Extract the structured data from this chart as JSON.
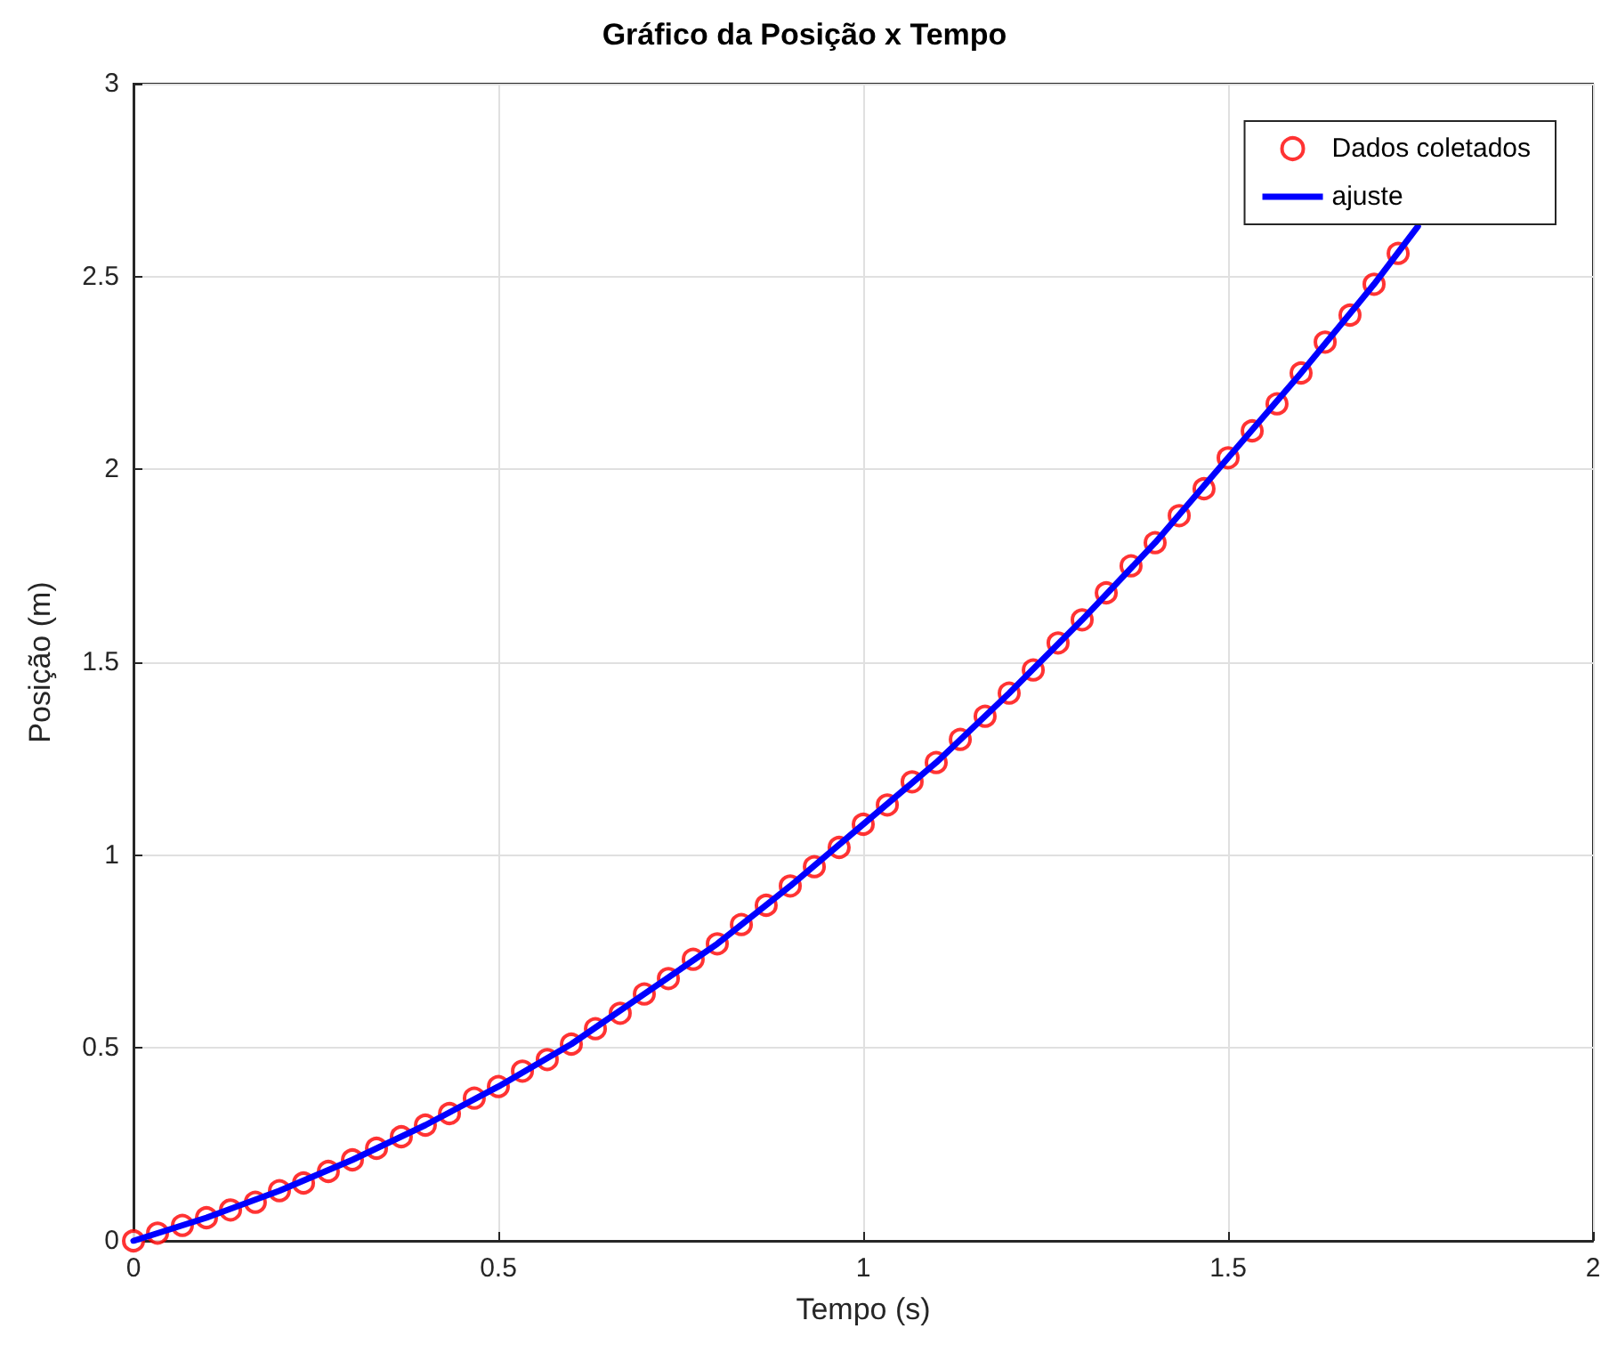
{
  "chart_data": {
    "type": "scatter",
    "title": "Gráfico da Posição x Tempo",
    "xlabel": "Tempo (s)",
    "ylabel": "Posição (m)",
    "xlim": [
      0,
      2
    ],
    "xticks": [
      0,
      0.5,
      1,
      1.5,
      2
    ],
    "ylim": [
      0,
      3
    ],
    "yticks": [
      0,
      0.5,
      1,
      1.5,
      2,
      2.5,
      3
    ],
    "grid": true,
    "legend": "top right",
    "series": [
      {
        "name": "Dados coletados",
        "marker": "circle",
        "color": "#ff0000",
        "x": [
          0,
          0.033,
          0.067,
          0.1,
          0.133,
          0.167,
          0.2,
          0.233,
          0.267,
          0.3,
          0.333,
          0.367,
          0.4,
          0.433,
          0.467,
          0.5,
          0.533,
          0.567,
          0.6,
          0.633,
          0.667,
          0.7,
          0.733,
          0.767,
          0.8,
          0.833,
          0.867,
          0.9,
          0.933,
          0.967,
          1,
          1.033,
          1.067,
          1.1,
          1.133,
          1.167,
          1.2,
          1.233,
          1.267,
          1.3,
          1.333,
          1.367,
          1.4,
          1.433,
          1.467,
          1.5,
          1.533,
          1.567,
          1.6,
          1.633,
          1.667,
          1.7,
          1.733
        ],
        "values": [
          0,
          0.02,
          0.04,
          0.06,
          0.08,
          0.1,
          0.13,
          0.15,
          0.18,
          0.21,
          0.24,
          0.27,
          0.3,
          0.33,
          0.37,
          0.4,
          0.44,
          0.47,
          0.51,
          0.55,
          0.59,
          0.64,
          0.68,
          0.73,
          0.77,
          0.82,
          0.87,
          0.92,
          0.97,
          1.02,
          1.08,
          1.13,
          1.19,
          1.24,
          1.3,
          1.36,
          1.42,
          1.48,
          1.55,
          1.61,
          1.68,
          1.75,
          1.81,
          1.88,
          1.95,
          2.03,
          2.1,
          2.17,
          2.25,
          2.33,
          2.4,
          2.48,
          2.56
        ]
      },
      {
        "name": "ajuste",
        "type": "line",
        "marker": "none",
        "line_style": "solid",
        "color": "#0000ff",
        "x": [
          0,
          0.1,
          0.2,
          0.3,
          0.4,
          0.5,
          0.6,
          0.7,
          0.8,
          0.9,
          1,
          1.1,
          1.2,
          1.3,
          1.4,
          1.5,
          1.6,
          1.7,
          1.76
        ],
        "values": [
          0,
          0.06,
          0.13,
          0.21,
          0.3,
          0.4,
          0.51,
          0.64,
          0.77,
          0.92,
          1.08,
          1.24,
          1.42,
          1.61,
          1.81,
          2.03,
          2.25,
          2.48,
          2.63
        ]
      }
    ]
  }
}
